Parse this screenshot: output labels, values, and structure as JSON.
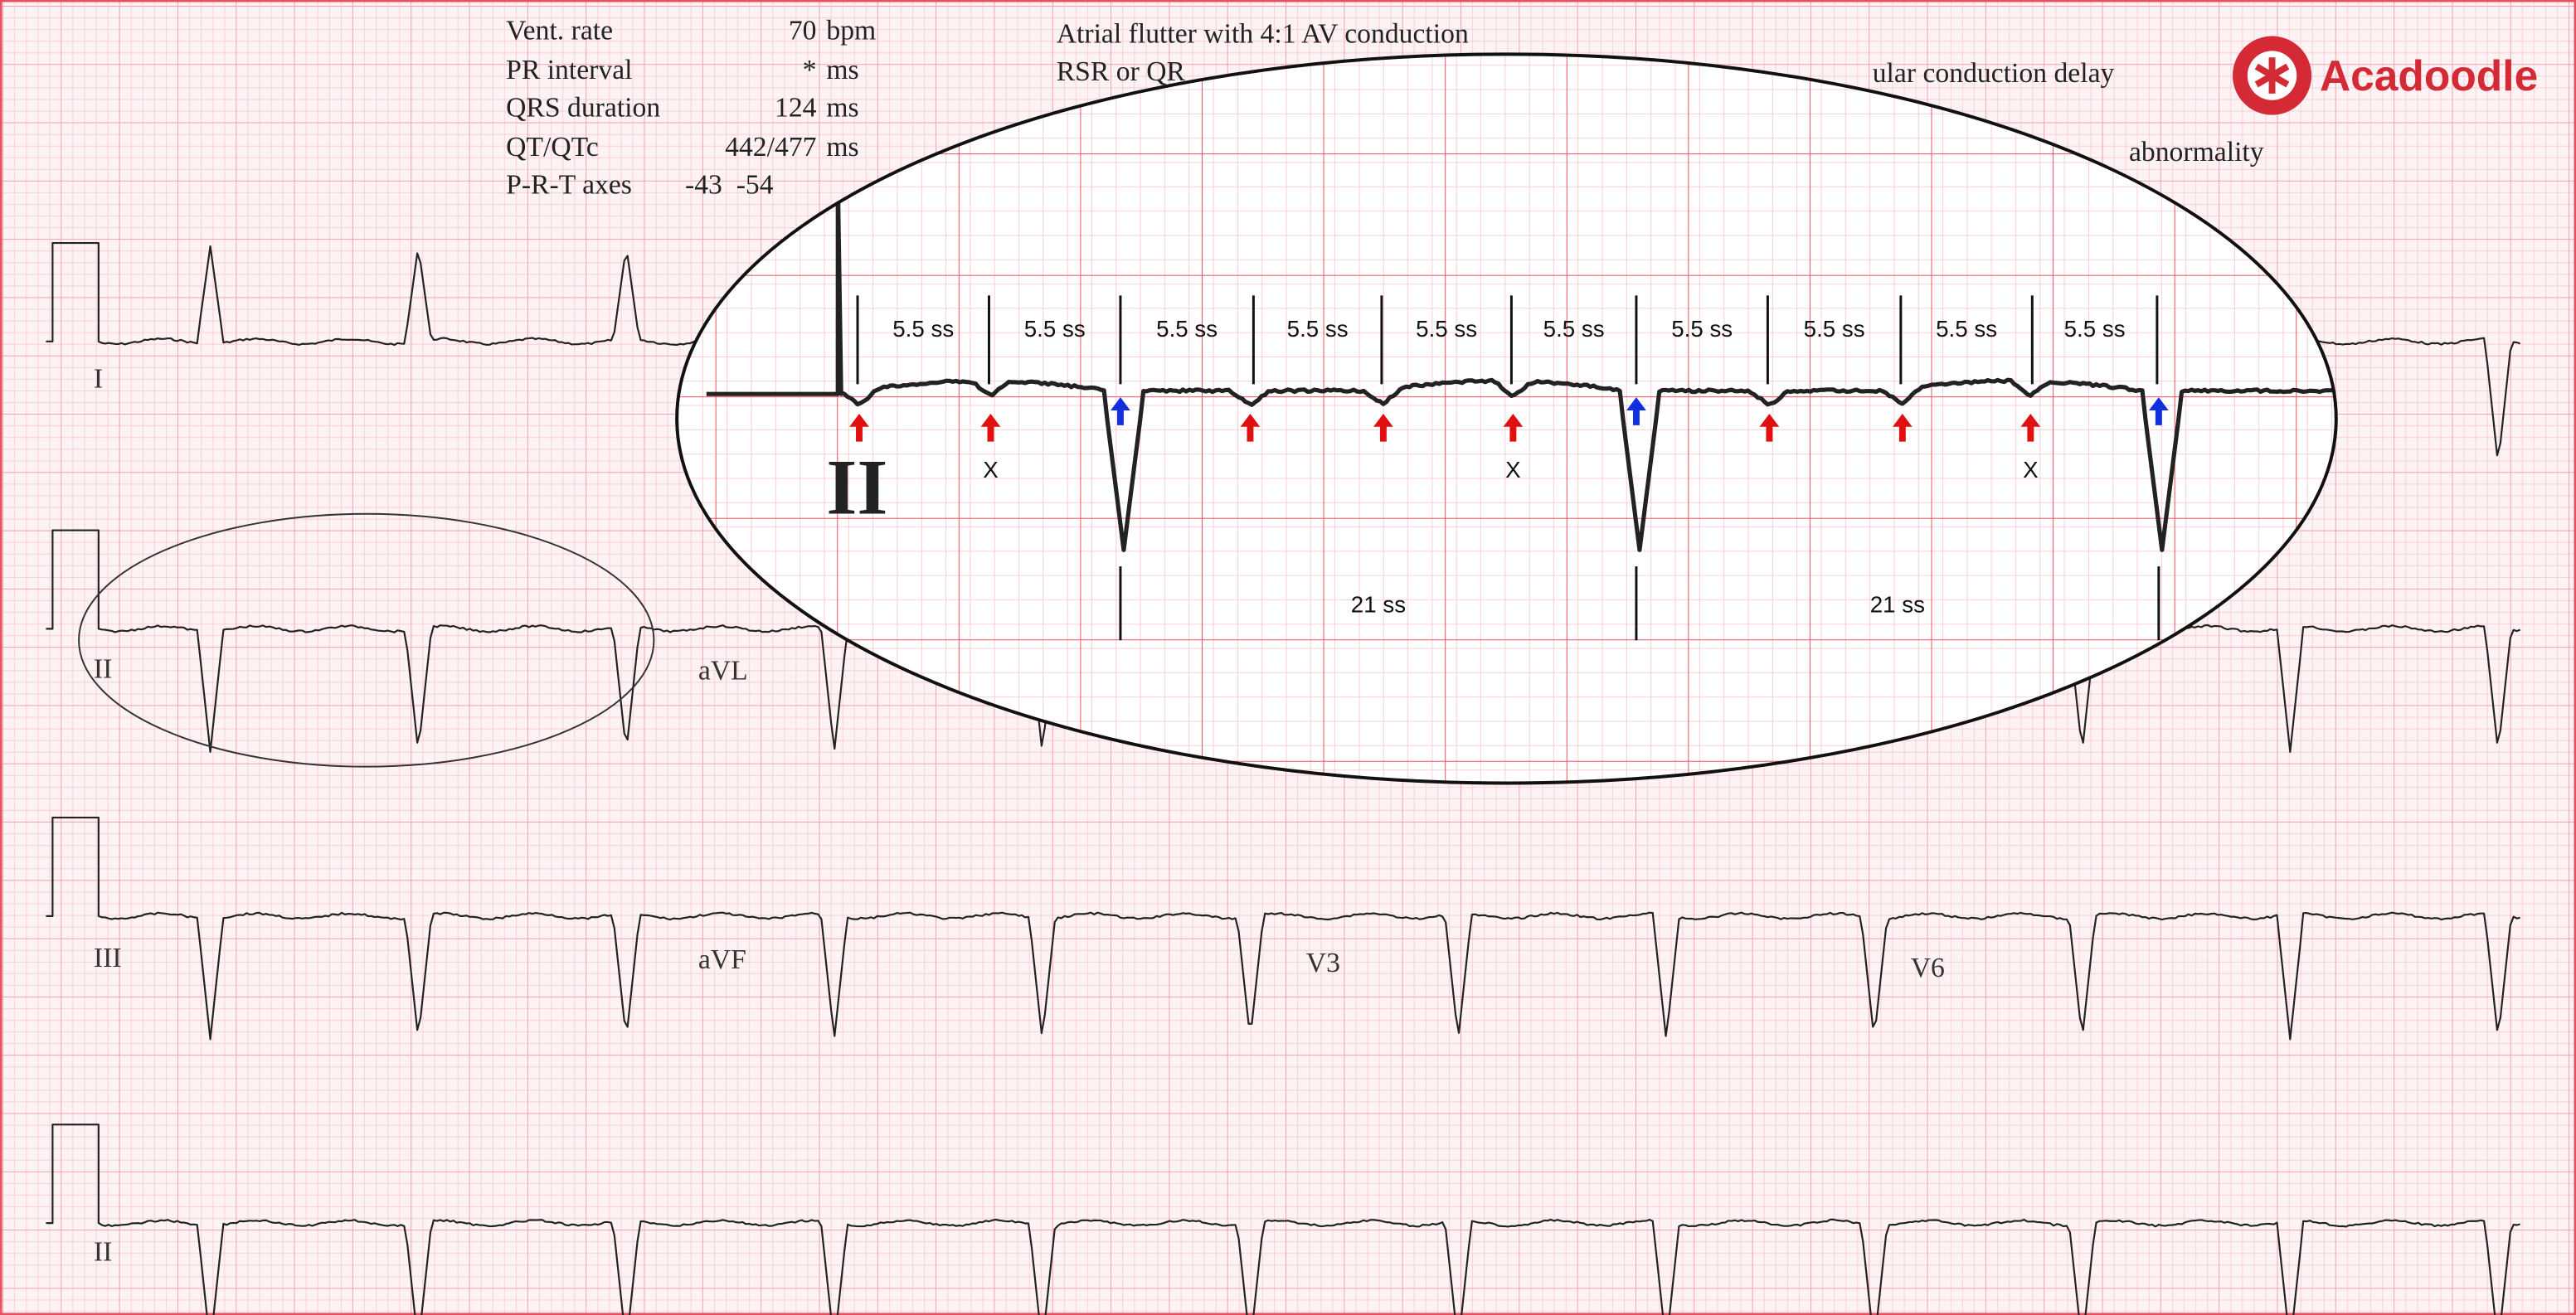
{
  "header": {
    "measurements": [
      {
        "label": "Vent. rate",
        "value": "70",
        "unit": "bpm"
      },
      {
        "label": "PR interval",
        "value": "*",
        "unit": "ms"
      },
      {
        "label": "QRS duration",
        "value": "124",
        "unit": "ms"
      },
      {
        "label": "QT/QTc",
        "value": "442/477",
        "unit": "ms"
      },
      {
        "label": "P-R-T axes",
        "value": "-43  -54",
        "unit": ""
      }
    ],
    "interpretation": [
      "Atrial flutter with 4:1 AV conduction",
      "RSR or QR",
      "ular conduction delay",
      "abnormality"
    ]
  },
  "leads": [
    "I",
    "II",
    "aVL",
    "III",
    "aVF",
    "V3",
    "V6",
    "II"
  ],
  "zoom": {
    "lead": "II",
    "intervals": [
      "5.5 ss",
      "5.5 ss",
      "5.5 ss",
      "5.5 ss",
      "5.5 ss",
      "5.5 ss",
      "5.5 ss",
      "5.5 ss",
      "5.5 ss",
      "5.5 ss"
    ],
    "rr_intervals": [
      "21 ss",
      "21 ss"
    ],
    "marks": [
      "X",
      "X",
      "X"
    ]
  },
  "logo": "Acadoodle"
}
